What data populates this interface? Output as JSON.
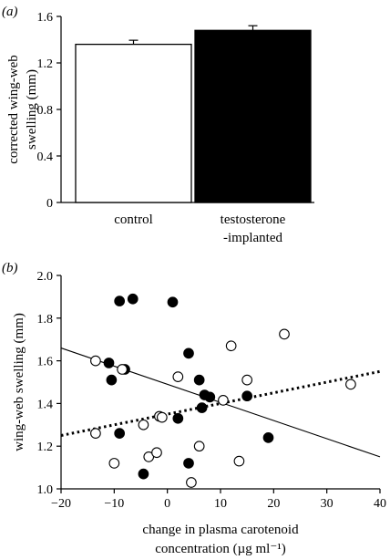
{
  "chart_data": [
    {
      "type": "bar",
      "panel_label": "(a)",
      "categories": [
        "control",
        "testosterone\n-implanted"
      ],
      "values": [
        1.36,
        1.48
      ],
      "errors": [
        0.035,
        0.04
      ],
      "colors": [
        "#ffffff",
        "#000000"
      ],
      "ylabel": "corrected wing-web swelling (mm)",
      "ylabel_lines": [
        "corrected wing-web",
        "swelling (mm)"
      ],
      "ylim": [
        0,
        1.6
      ],
      "yticks": [
        0,
        0.4,
        0.8,
        1.2,
        1.6
      ],
      "ytick_labels": [
        "0",
        "0.4",
        "0.8",
        "1.2",
        "1.6"
      ],
      "grid": false
    },
    {
      "type": "scatter",
      "panel_label": "(b)",
      "xlabel_lines": [
        "change in plasma carotenoid",
        "concentration (µg ml⁻¹)"
      ],
      "ylabel": "wing-web swelling (mm)",
      "xlim": [
        -20,
        40
      ],
      "ylim": [
        1.0,
        2.0
      ],
      "xticks": [
        -20,
        -10,
        0,
        10,
        20,
        30,
        40
      ],
      "xtick_labels": [
        "−20",
        "−10",
        "0",
        "10",
        "20",
        "30",
        "40"
      ],
      "yticks": [
        1.0,
        1.2,
        1.4,
        1.6,
        1.8,
        2.0
      ],
      "ytick_labels": [
        "1.0",
        "1.2",
        "1.4",
        "1.6",
        "1.8",
        "2.0"
      ],
      "grid": false,
      "series": [
        {
          "marker": "filled-circle",
          "x": [
            -9,
            -6.5,
            1,
            -11,
            -10.5,
            -8,
            -9,
            4,
            6,
            7,
            8,
            15,
            2,
            4,
            19,
            -4.5,
            6.5
          ],
          "y": [
            1.88,
            1.89,
            1.875,
            1.59,
            1.51,
            1.56,
            1.26,
            1.635,
            1.51,
            1.44,
            1.43,
            1.435,
            1.33,
            1.12,
            1.24,
            1.07,
            1.38
          ],
          "color": "#000000",
          "trend": {
            "x": [
              -20,
              40
            ],
            "y": [
              1.66,
              1.15
            ],
            "style": "solid"
          }
        },
        {
          "marker": "open-circle",
          "x": [
            -13.5,
            -8.5,
            12,
            22,
            34.5,
            15,
            2,
            -1.5,
            -1,
            -4.5,
            -3.5,
            -13.5,
            -10,
            6,
            10.5,
            13.5,
            4.5,
            -2
          ],
          "y": [
            1.6,
            1.56,
            1.67,
            1.725,
            1.49,
            1.51,
            1.525,
            1.34,
            1.335,
            1.3,
            1.15,
            1.26,
            1.12,
            1.2,
            1.415,
            1.13,
            1.03,
            1.17
          ],
          "color": "#000000",
          "trend": {
            "x": [
              -20,
              40
            ],
            "y": [
              1.25,
              1.55
            ],
            "style": "dotted"
          }
        }
      ]
    }
  ]
}
